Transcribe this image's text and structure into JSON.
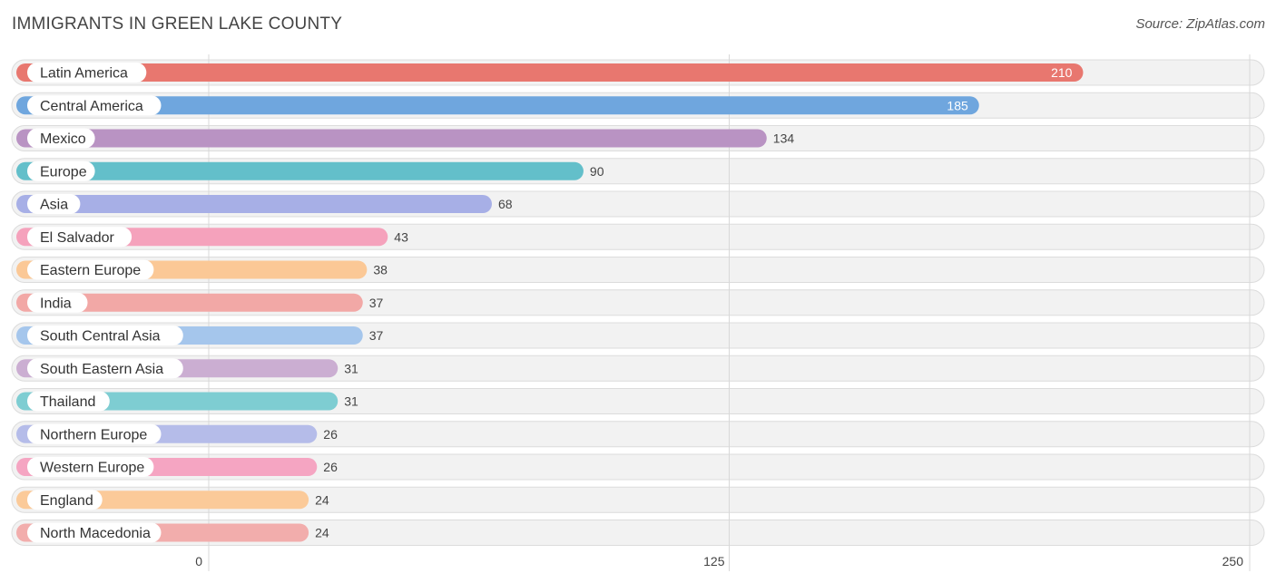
{
  "chart_data": {
    "type": "bar",
    "orientation": "horizontal",
    "title": "IMMIGRANTS IN GREEN LAKE COUNTY",
    "source": "Source: ZipAtlas.com",
    "categories": [
      "Latin America",
      "Central America",
      "Mexico",
      "Europe",
      "Asia",
      "El Salvador",
      "Eastern Europe",
      "India",
      "South Central Asia",
      "South Eastern Asia",
      "Thailand",
      "Northern Europe",
      "Western Europe",
      "England",
      "North Macedonia"
    ],
    "values": [
      210,
      185,
      134,
      90,
      68,
      43,
      38,
      37,
      37,
      31,
      31,
      26,
      26,
      24,
      24
    ],
    "value_labels": [
      "210",
      "185",
      "134",
      "90",
      "68",
      "43",
      "38",
      "37",
      "37",
      "31",
      "31",
      "26",
      "26",
      "24",
      "24"
    ],
    "colors": [
      "#e8776f",
      "#6fa6de",
      "#b993c3",
      "#63bfca",
      "#a7afe6",
      "#f5a2bc",
      "#fbc896",
      "#f2a8a6",
      "#a5c6ec",
      "#cbaed2",
      "#7ecdd2",
      "#b5bce9",
      "#f5a5c2",
      "#fbca99",
      "#f2adac"
    ],
    "xlim": [
      0,
      250
    ],
    "xticks": [
      0,
      125,
      250
    ],
    "tick_labels": [
      "0",
      "125",
      "250"
    ],
    "grid": true,
    "legend": "none"
  }
}
